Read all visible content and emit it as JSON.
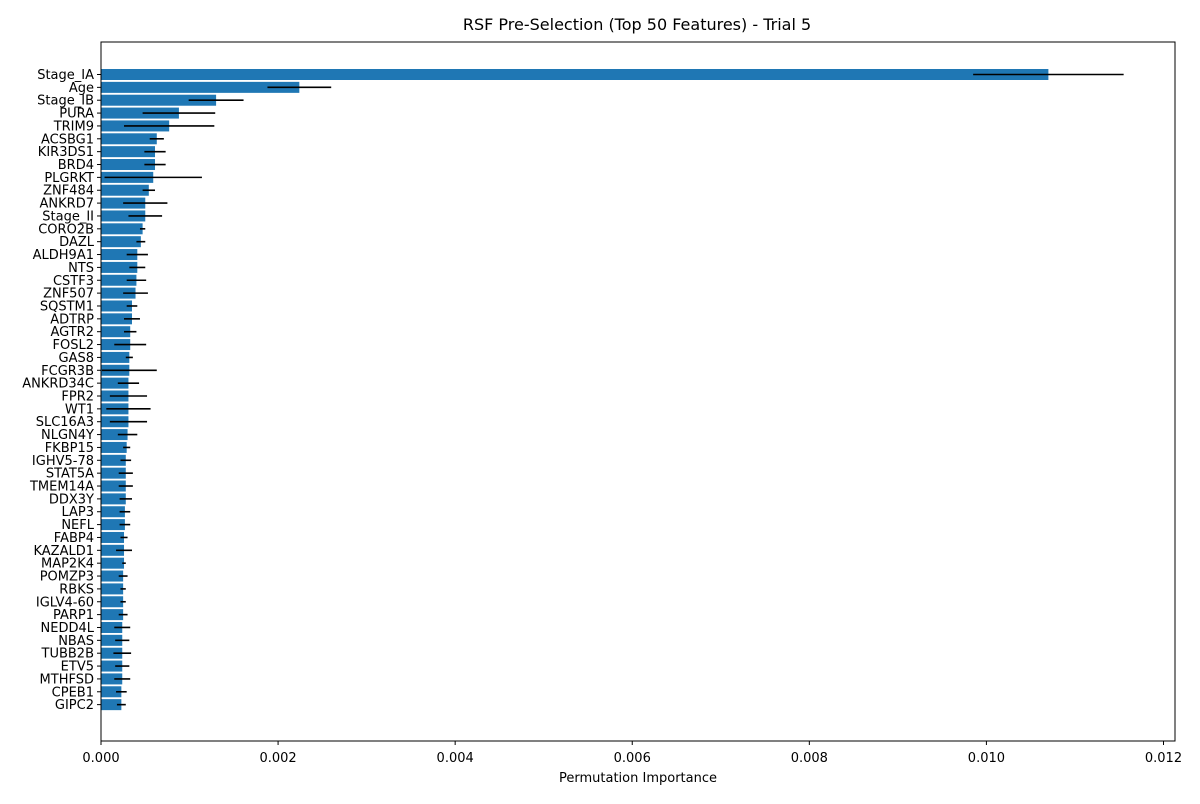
{
  "chart_data": {
    "type": "bar",
    "orientation": "horizontal",
    "title": "RSF Pre-Selection (Top 50 Features) - Trial 5",
    "xlabel": "Permutation Importance",
    "ylabel": "",
    "xlim": [
      0,
      0.01213
    ],
    "xticks": [
      "0.000",
      "0.002",
      "0.004",
      "0.006",
      "0.008",
      "0.010",
      "0.012"
    ],
    "xtick_values": [
      0,
      0.002,
      0.004,
      0.006,
      0.008,
      0.01,
      0.012
    ],
    "bar_color": "#1f77b4",
    "error_color": "#000000",
    "categories": [
      "Stage_IA",
      "Age",
      "Stage_IB",
      "PURA",
      "TRIM9",
      "ACSBG1",
      "KIR3DS1",
      "BRD4",
      "PLGRKT",
      "ZNF484",
      "ANKRD7",
      "Stage_II",
      "CORO2B",
      "DAZL",
      "ALDH9A1",
      "NTS",
      "CSTF3",
      "ZNF507",
      "SQSTM1",
      "ADTRP",
      "AGTR2",
      "FOSL2",
      "GAS8",
      "FCGR3B",
      "ANKRD34C",
      "FPR2",
      "WT1",
      "SLC16A3",
      "NLGN4Y",
      "FKBP15",
      "IGHV5-78",
      "STAT5A",
      "TMEM14A",
      "DDX3Y",
      "LAP3",
      "NEFL",
      "FABP4",
      "KAZALD1",
      "MAP2K4",
      "POMZP3",
      "RBKS",
      "IGLV4-60",
      "PARP1",
      "NEDD4L",
      "NBAS",
      "TUBB2B",
      "ETV5",
      "MTHFSD",
      "CPEB1",
      "GIPC2"
    ],
    "values": [
      0.0107,
      0.00224,
      0.0013,
      0.00088,
      0.00077,
      0.00063,
      0.00061,
      0.00061,
      0.00059,
      0.00054,
      0.0005,
      0.0005,
      0.00047,
      0.00045,
      0.00041,
      0.00041,
      0.0004,
      0.00039,
      0.00035,
      0.00035,
      0.00033,
      0.00033,
      0.00032,
      0.00032,
      0.00031,
      0.00031,
      0.00031,
      0.00031,
      0.0003,
      0.00029,
      0.00028,
      0.00028,
      0.00028,
      0.00028,
      0.00027,
      0.00027,
      0.00026,
      0.00026,
      0.00026,
      0.00025,
      0.00025,
      0.00025,
      0.00025,
      0.00024,
      0.00024,
      0.00024,
      0.00024,
      0.00024,
      0.00023,
      0.00023
    ],
    "errors": [
      0.00085,
      0.00036,
      0.00031,
      0.00041,
      0.00051,
      8e-05,
      0.00012,
      0.00012,
      0.00055,
      7e-05,
      0.00025,
      0.00019,
      3e-05,
      5e-05,
      0.00012,
      9e-05,
      0.00011,
      0.00014,
      6e-05,
      9e-05,
      7e-05,
      0.00018,
      4e-05,
      0.00031,
      0.00012,
      0.00021,
      0.00025,
      0.00021,
      0.00011,
      4e-05,
      6e-05,
      8e-05,
      8e-05,
      7e-05,
      6e-05,
      6e-05,
      4e-05,
      9e-05,
      2e-05,
      5e-05,
      3e-05,
      3e-05,
      5e-05,
      9e-05,
      8e-05,
      0.0001,
      8e-05,
      9e-05,
      6e-05,
      5e-05
    ]
  }
}
